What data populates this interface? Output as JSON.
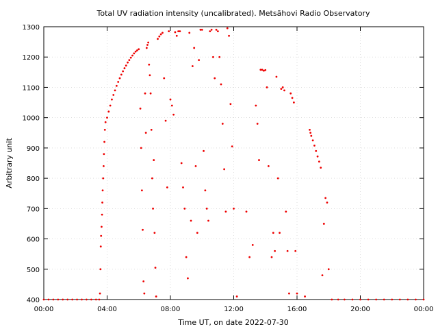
{
  "chart_data": {
    "type": "scatter",
    "title": "Total UV radiation intensity (uncalibrated). Metsähovi Radio Observatory",
    "xlabel": "Time UT, on date 2022-07-30",
    "ylabel": "Arbitrary unit",
    "xlim": [
      0,
      24
    ],
    "ylim": [
      400,
      1300
    ],
    "x_unit": "hours UT",
    "x_ticks": [
      0,
      4,
      8,
      12,
      16,
      20,
      24
    ],
    "x_tick_labels": [
      "00:00",
      "04:00",
      "08:00",
      "12:00",
      "16:00",
      "20:00",
      "00:00"
    ],
    "y_ticks": [
      400,
      500,
      600,
      700,
      800,
      900,
      1000,
      1100,
      1200,
      1300
    ],
    "y_tick_labels": [
      "400",
      "500",
      "600",
      "700",
      "800",
      "900",
      "1000",
      "1100",
      "1200",
      "1300"
    ],
    "grid": true,
    "marker_color": "#ee0000",
    "series": [
      {
        "points": [
          [
            0.0,
            400
          ],
          [
            0.3,
            400
          ],
          [
            0.6,
            400
          ],
          [
            0.9,
            400
          ],
          [
            1.2,
            400
          ],
          [
            1.5,
            400
          ],
          [
            1.8,
            400
          ],
          [
            2.1,
            400
          ],
          [
            2.4,
            400
          ],
          [
            2.7,
            400
          ],
          [
            3.0,
            400
          ],
          [
            3.3,
            400
          ],
          [
            3.5,
            400
          ],
          [
            3.55,
            420
          ],
          [
            3.58,
            500
          ],
          [
            3.6,
            575
          ],
          [
            3.62,
            610
          ],
          [
            3.65,
            640
          ],
          [
            3.68,
            680
          ],
          [
            3.7,
            720
          ],
          [
            3.72,
            760
          ],
          [
            3.75,
            800
          ],
          [
            3.78,
            840
          ],
          [
            3.8,
            880
          ],
          [
            3.83,
            920
          ],
          [
            3.86,
            960
          ],
          [
            3.9,
            985
          ],
          [
            4.0,
            1000
          ],
          [
            4.1,
            1020
          ],
          [
            4.2,
            1040
          ],
          [
            4.3,
            1060
          ],
          [
            4.4,
            1075
          ],
          [
            4.5,
            1090
          ],
          [
            4.6,
            1105
          ],
          [
            4.7,
            1118
          ],
          [
            4.8,
            1130
          ],
          [
            4.9,
            1142
          ],
          [
            5.0,
            1153
          ],
          [
            5.1,
            1163
          ],
          [
            5.2,
            1172
          ],
          [
            5.3,
            1182
          ],
          [
            5.4,
            1190
          ],
          [
            5.5,
            1198
          ],
          [
            5.6,
            1205
          ],
          [
            5.7,
            1212
          ],
          [
            5.8,
            1218
          ],
          [
            5.9,
            1222
          ],
          [
            6.0,
            1226
          ],
          [
            6.1,
            1030
          ],
          [
            6.15,
            900
          ],
          [
            6.2,
            760
          ],
          [
            6.25,
            630
          ],
          [
            6.3,
            460
          ],
          [
            6.35,
            420
          ],
          [
            6.4,
            1080
          ],
          [
            6.45,
            950
          ],
          [
            6.5,
            1230
          ],
          [
            6.55,
            1240
          ],
          [
            6.6,
            1248
          ],
          [
            6.65,
            1175
          ],
          [
            6.7,
            1140
          ],
          [
            6.75,
            1080
          ],
          [
            6.8,
            960
          ],
          [
            6.85,
            800
          ],
          [
            6.9,
            700
          ],
          [
            6.95,
            860
          ],
          [
            7.0,
            620
          ],
          [
            7.05,
            505
          ],
          [
            7.1,
            410
          ],
          [
            7.2,
            1260
          ],
          [
            7.3,
            1268
          ],
          [
            7.4,
            1275
          ],
          [
            7.5,
            1280
          ],
          [
            7.6,
            1130
          ],
          [
            7.7,
            990
          ],
          [
            7.8,
            770
          ],
          [
            7.9,
            1285
          ],
          [
            8.0,
            1060
          ],
          [
            8.1,
            1040
          ],
          [
            8.2,
            1010
          ],
          [
            8.3,
            1282
          ],
          [
            8.4,
            1270
          ],
          [
            8.5,
            1285
          ],
          [
            8.6,
            1285
          ],
          [
            8.7,
            850
          ],
          [
            8.8,
            770
          ],
          [
            8.9,
            700
          ],
          [
            9.0,
            540
          ],
          [
            9.1,
            470
          ],
          [
            9.2,
            1280
          ],
          [
            9.3,
            660
          ],
          [
            9.4,
            1170
          ],
          [
            9.5,
            1230
          ],
          [
            9.6,
            840
          ],
          [
            9.7,
            620
          ],
          [
            9.8,
            1190
          ],
          [
            9.9,
            1290
          ],
          [
            10.0,
            1290
          ],
          [
            10.1,
            890
          ],
          [
            10.2,
            760
          ],
          [
            10.3,
            700
          ],
          [
            10.4,
            660
          ],
          [
            10.5,
            1285
          ],
          [
            10.6,
            1290
          ],
          [
            10.7,
            1200
          ],
          [
            10.8,
            1130
          ],
          [
            10.9,
            1290
          ],
          [
            11.0,
            1285
          ],
          [
            11.1,
            1200
          ],
          [
            11.2,
            1110
          ],
          [
            11.3,
            980
          ],
          [
            11.4,
            830
          ],
          [
            11.5,
            690
          ],
          [
            11.6,
            1295
          ],
          [
            11.7,
            1270
          ],
          [
            11.8,
            1045
          ],
          [
            11.9,
            905
          ],
          [
            12.0,
            700
          ],
          [
            12.2,
            410
          ],
          [
            12.8,
            690
          ],
          [
            13.0,
            540
          ],
          [
            13.2,
            580
          ],
          [
            13.4,
            1040
          ],
          [
            13.5,
            980
          ],
          [
            13.6,
            860
          ],
          [
            13.7,
            1158
          ],
          [
            13.8,
            1158
          ],
          [
            13.9,
            1155
          ],
          [
            14.0,
            1157
          ],
          [
            14.1,
            1100
          ],
          [
            14.2,
            840
          ],
          [
            14.4,
            540
          ],
          [
            14.5,
            620
          ],
          [
            14.6,
            560
          ],
          [
            14.7,
            1135
          ],
          [
            14.8,
            800
          ],
          [
            14.9,
            620
          ],
          [
            15.0,
            1095
          ],
          [
            15.1,
            1100
          ],
          [
            15.2,
            1090
          ],
          [
            15.3,
            690
          ],
          [
            15.4,
            560
          ],
          [
            15.5,
            420
          ],
          [
            15.6,
            1080
          ],
          [
            15.7,
            1065
          ],
          [
            15.8,
            1050
          ],
          [
            15.9,
            560
          ],
          [
            16.0,
            420
          ],
          [
            16.5,
            410
          ],
          [
            16.8,
            960
          ],
          [
            16.85,
            950
          ],
          [
            16.9,
            940
          ],
          [
            17.0,
            925
          ],
          [
            17.1,
            908
          ],
          [
            17.2,
            890
          ],
          [
            17.3,
            872
          ],
          [
            17.4,
            855
          ],
          [
            17.5,
            835
          ],
          [
            17.6,
            480
          ],
          [
            17.7,
            650
          ],
          [
            17.8,
            735
          ],
          [
            17.9,
            720
          ],
          [
            18.0,
            500
          ],
          [
            18.2,
            400
          ],
          [
            18.6,
            400
          ],
          [
            19.0,
            400
          ],
          [
            19.5,
            400
          ],
          [
            20.0,
            400
          ],
          [
            20.5,
            400
          ],
          [
            21.0,
            400
          ],
          [
            21.5,
            400
          ],
          [
            22.0,
            400
          ],
          [
            22.5,
            400
          ],
          [
            23.0,
            400
          ],
          [
            23.5,
            400
          ],
          [
            24.0,
            400
          ]
        ]
      }
    ]
  }
}
